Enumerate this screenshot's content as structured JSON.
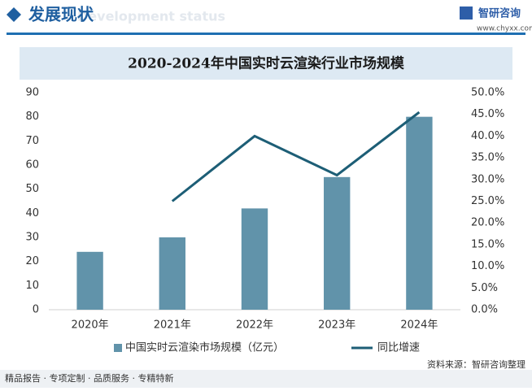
{
  "header": {
    "title": "发展现状",
    "subtitle": "Development status",
    "brand": "智研咨询",
    "url": "www.chyxx.com"
  },
  "chart_data": {
    "type": "bar",
    "title": "2020-2024年中国实时云渲染行业市场规模",
    "categories": [
      "2020年",
      "2021年",
      "2022年",
      "2023年",
      "2024年"
    ],
    "series": [
      {
        "name": "中国实时云渲染市场规模（亿元）",
        "type": "bar",
        "color": "#6193aa",
        "values": [
          24,
          30,
          42,
          55,
          80
        ]
      },
      {
        "name": "同比增速",
        "type": "line",
        "axis": "y2",
        "color": "#1d5e76",
        "values": [
          null,
          25,
          40,
          31,
          45.5
        ]
      }
    ],
    "ylim": [
      0,
      90
    ],
    "yticks": [
      0,
      10,
      20,
      30,
      40,
      50,
      60,
      70,
      80,
      90
    ],
    "y2lim": [
      0,
      50
    ],
    "y2ticks": [
      {
        "value": 0,
        "label": "0.0%"
      },
      {
        "value": 5,
        "label": "5.0%"
      },
      {
        "value": 10,
        "label": "10.0%"
      },
      {
        "value": 15,
        "label": "15.0%"
      },
      {
        "value": 20,
        "label": "20.0%"
      },
      {
        "value": 25,
        "label": "25.0%"
      },
      {
        "value": 30,
        "label": "30.0%"
      },
      {
        "value": 35,
        "label": "35.0%"
      },
      {
        "value": 40,
        "label": "40.0%"
      },
      {
        "value": 45,
        "label": "45.0%"
      },
      {
        "value": 50,
        "label": "50.0%"
      }
    ],
    "grid": false,
    "legend": "bottom"
  },
  "footer": {
    "left": "精品报告 · 专项定制 · 品质服务 · 专精特新",
    "source": "资料来源：智研咨询整理"
  }
}
